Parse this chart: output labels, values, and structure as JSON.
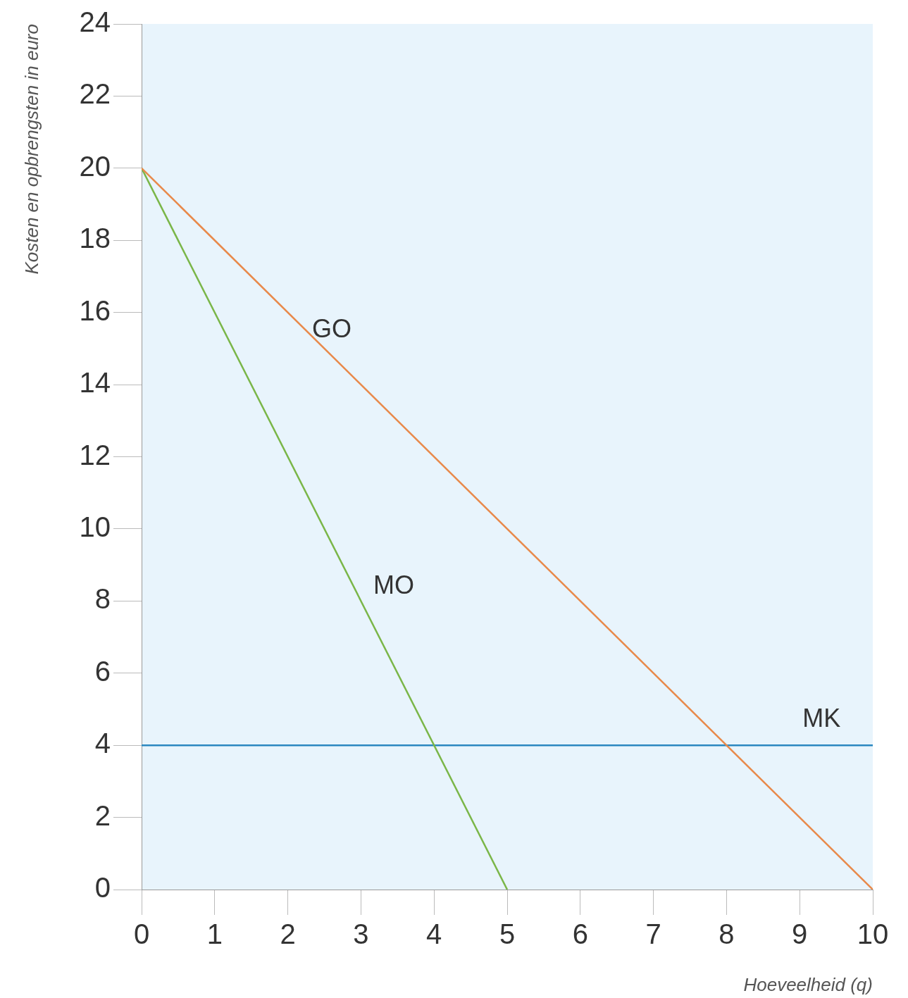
{
  "chart_data": {
    "type": "line",
    "xlabel": "Hoeveelheid (q)",
    "ylabel": "Kosten en opbrengsten in euro",
    "series": [
      {
        "name": "GO",
        "color": "#e8894a",
        "x": [
          0,
          10
        ],
        "values": [
          20,
          0
        ]
      },
      {
        "name": "MO",
        "color": "#7ab648",
        "x": [
          0,
          5
        ],
        "values": [
          20,
          0
        ]
      },
      {
        "name": "MK",
        "color": "#2b87c0",
        "x": [
          0,
          10
        ],
        "values": [
          4,
          4
        ]
      }
    ],
    "xlim": [
      0,
      10
    ],
    "ylim": [
      0,
      24
    ],
    "xticks": [
      0,
      1,
      2,
      3,
      4,
      5,
      6,
      7,
      8,
      9,
      10
    ],
    "yticks": [
      0,
      2,
      4,
      6,
      8,
      10,
      12,
      14,
      16,
      18,
      20,
      22,
      24
    ],
    "grid": false,
    "legend": false,
    "marker": "none",
    "line_style": "solid"
  }
}
